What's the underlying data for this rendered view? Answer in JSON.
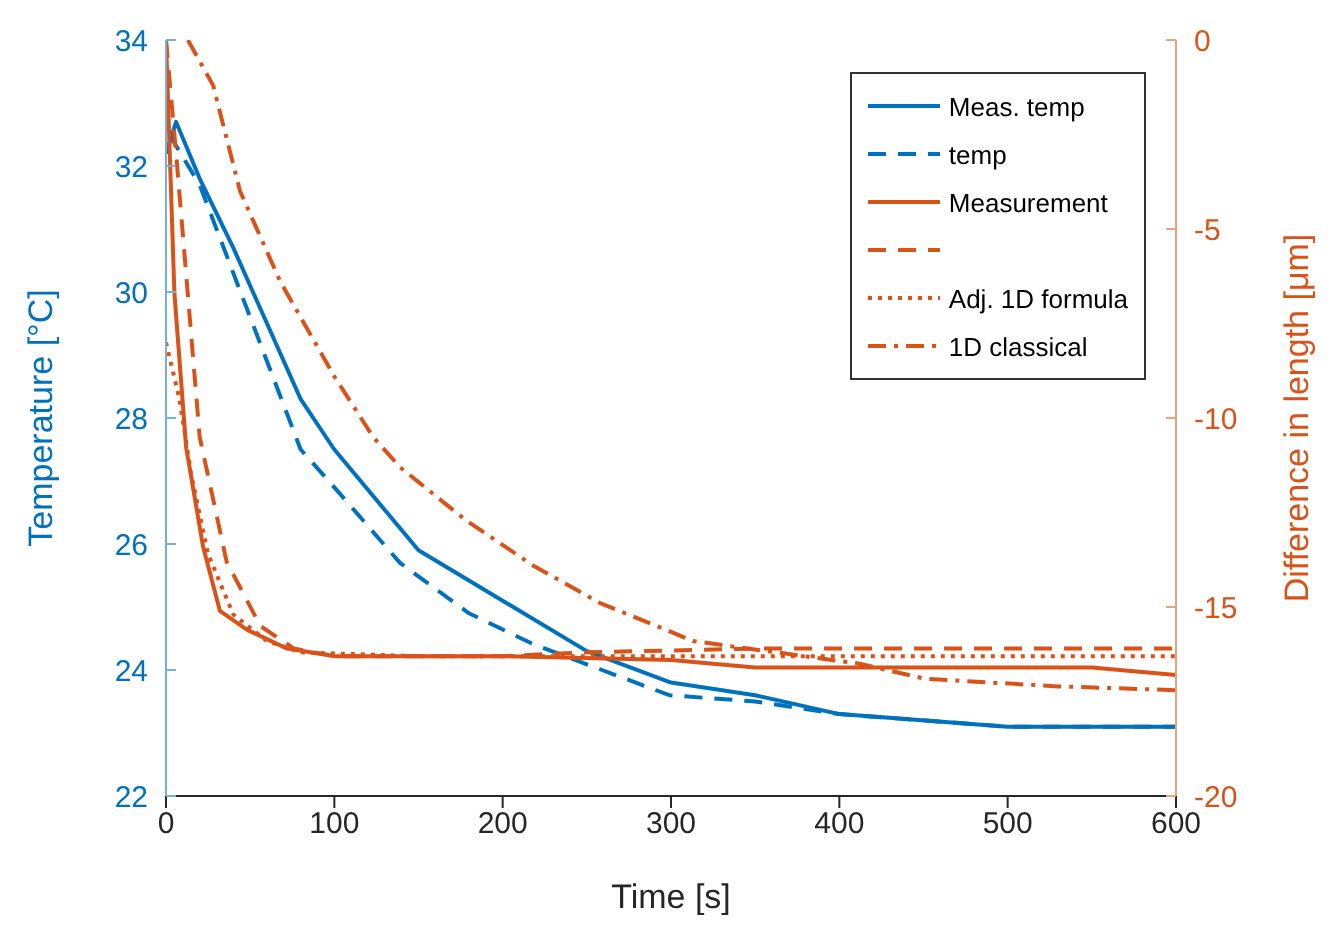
{
  "chart_data": {
    "type": "line",
    "xlabel": "Time [s]",
    "ylabel": "Temperature [°C]",
    "y2label": "Difference in length [μm]",
    "xlim": [
      0,
      600
    ],
    "xticks": [
      0,
      100,
      200,
      300,
      400,
      500,
      600
    ],
    "ylim": [
      22,
      34
    ],
    "yticks": [
      22,
      24,
      26,
      28,
      30,
      32,
      34
    ],
    "y2lim": [
      -20,
      0
    ],
    "y2ticks": [
      -20,
      -15,
      -10,
      -5,
      0
    ],
    "legend": "top right",
    "grid": false,
    "series": [
      {
        "name": "Meas. temp",
        "color": "#0072bd",
        "line_style": "solid",
        "axis": "y",
        "x": [
          0,
          6,
          20,
          40,
          60,
          80,
          100,
          150,
          200,
          250,
          300,
          350,
          400,
          500,
          600
        ],
        "values": [
          32.2,
          32.7,
          31.8,
          30.7,
          29.5,
          28.3,
          27.5,
          25.9,
          25.1,
          24.3,
          23.8,
          23.6,
          23.3,
          23.1,
          23.1
        ]
      },
      {
        "name": "temp",
        "color": "#0072bd",
        "line_style": "dashed",
        "axis": "y",
        "x": [
          2,
          20,
          40,
          60,
          80,
          100,
          139,
          180,
          219,
          259,
          299,
          350,
          400,
          500,
          600
        ],
        "values": [
          32.5,
          31.7,
          30.3,
          28.9,
          27.5,
          26.9,
          25.7,
          24.9,
          24.4,
          24.0,
          23.6,
          23.5,
          23.3,
          23.1,
          23.1
        ]
      },
      {
        "name": "Measurement",
        "color": "#d95319",
        "line_style": "solid",
        "axis": "y2",
        "x": [
          0,
          5,
          12,
          14,
          22,
          32,
          48,
          72,
          100,
          200,
          300,
          350,
          450,
          550,
          600
        ],
        "values": [
          0,
          -6.7,
          -10.8,
          -11.3,
          -13.4,
          -15.1,
          -15.6,
          -16.1,
          -16.3,
          -16.3,
          -16.4,
          -16.6,
          -16.6,
          -16.6,
          -16.8
        ]
      },
      {
        "color": "#d95319",
        "line_style": "dashed",
        "axis": "y2",
        "x": [
          0,
          6,
          20,
          36,
          56,
          76,
          100,
          200,
          250,
          350,
          450,
          600
        ],
        "values": [
          0,
          -3,
          -10.5,
          -13.8,
          -15.5,
          -16.1,
          -16.3,
          -16.3,
          -16.2,
          -16.1,
          -16.1,
          -16.1
        ]
      },
      {
        "name": "Adj. 1D formula",
        "color": "#d95319",
        "line_style": "dotted",
        "axis": "y2",
        "x": [
          0,
          8,
          15,
          25,
          40,
          60,
          80,
          150,
          300,
          600
        ],
        "values": [
          -8,
          -9.5,
          -11.5,
          -13.6,
          -15.2,
          -15.9,
          -16.2,
          -16.3,
          -16.3,
          -16.3
        ]
      },
      {
        "name": "1D classical",
        "color": "#d95319",
        "line_style": "dashdot",
        "axis": "y2",
        "x": [
          13,
          28,
          44,
          68,
          100,
          123,
          139,
          178,
          218,
          258,
          297,
          313,
          412,
          451,
          530,
          600
        ],
        "values": [
          0,
          -1.2,
          -4,
          -6.4,
          -8.9,
          -10.5,
          -11.3,
          -12.7,
          -13.9,
          -14.9,
          -15.6,
          -15.9,
          -16.5,
          -16.9,
          -17.1,
          -17.2
        ]
      }
    ]
  }
}
